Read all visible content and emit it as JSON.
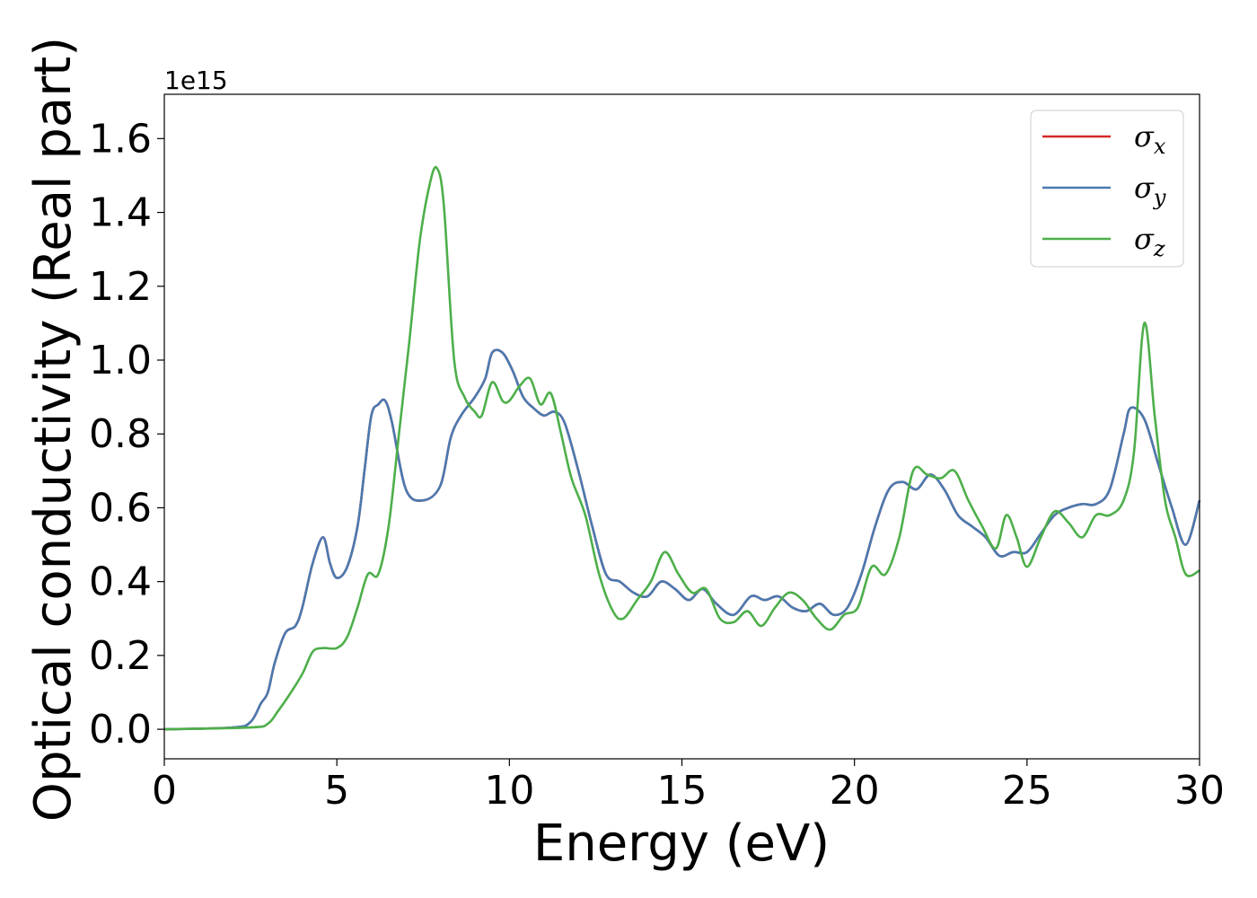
{
  "chart_data": {
    "type": "line",
    "xlabel": "Energy (eV)",
    "ylabel": "Optical conductivity (Real part)",
    "y_offset_label": "1e15",
    "xlim": [
      0,
      30
    ],
    "ylim": [
      -0.08,
      1.72
    ],
    "xticks": [
      0,
      5,
      10,
      15,
      20,
      25,
      30
    ],
    "yticks": [
      0.0,
      0.2,
      0.4,
      0.6,
      0.8,
      1.0,
      1.2,
      1.4,
      1.6
    ],
    "xtick_labels": [
      "0",
      "5",
      "10",
      "15",
      "20",
      "25",
      "30"
    ],
    "ytick_labels": [
      "0.0",
      "0.2",
      "0.4",
      "0.6",
      "0.8",
      "1.0",
      "1.2",
      "1.4",
      "1.6"
    ],
    "grid": false,
    "legend_position": "top-right",
    "series": [
      {
        "name": "σx",
        "legend_base": "σ",
        "legend_sub": "x",
        "color": "#d62728",
        "x": [
          0,
          2.0,
          2.5,
          2.8,
          3.0,
          3.2,
          3.5,
          3.8,
          4.0,
          4.3,
          4.6,
          4.8,
          5.0,
          5.3,
          5.6,
          5.8,
          6.0,
          6.2,
          6.4,
          6.6,
          7.0,
          7.5,
          8.0,
          8.3,
          8.6,
          9.0,
          9.3,
          9.5,
          9.8,
          10.1,
          10.4,
          10.7,
          11.0,
          11.3,
          11.6,
          12.0,
          12.4,
          12.8,
          13.2,
          13.6,
          14.0,
          14.4,
          14.8,
          15.2,
          15.6,
          16.0,
          16.5,
          17.0,
          17.4,
          17.8,
          18.2,
          18.6,
          19.0,
          19.4,
          19.8,
          20.2,
          20.6,
          21.0,
          21.4,
          21.8,
          22.2,
          22.6,
          23.0,
          23.4,
          23.8,
          24.2,
          24.6,
          25.0,
          25.4,
          25.8,
          26.2,
          26.6,
          27.0,
          27.4,
          27.8,
          28.0,
          28.4,
          28.8,
          29.2,
          29.6,
          30.0
        ],
        "values": [
          0.0,
          0.005,
          0.02,
          0.07,
          0.1,
          0.18,
          0.26,
          0.28,
          0.33,
          0.45,
          0.52,
          0.45,
          0.41,
          0.44,
          0.55,
          0.7,
          0.85,
          0.88,
          0.89,
          0.83,
          0.65,
          0.62,
          0.66,
          0.79,
          0.85,
          0.9,
          0.95,
          1.02,
          1.02,
          0.97,
          0.9,
          0.87,
          0.85,
          0.86,
          0.83,
          0.7,
          0.55,
          0.42,
          0.4,
          0.37,
          0.36,
          0.4,
          0.38,
          0.35,
          0.38,
          0.34,
          0.31,
          0.36,
          0.35,
          0.36,
          0.33,
          0.32,
          0.34,
          0.31,
          0.33,
          0.42,
          0.55,
          0.65,
          0.67,
          0.65,
          0.69,
          0.65,
          0.58,
          0.55,
          0.52,
          0.47,
          0.48,
          0.48,
          0.53,
          0.58,
          0.6,
          0.61,
          0.61,
          0.65,
          0.8,
          0.87,
          0.84,
          0.72,
          0.6,
          0.5,
          0.62
        ]
      },
      {
        "name": "σy",
        "legend_base": "σ",
        "legend_sub": "y",
        "color": "#4a7ab0",
        "x": [
          0,
          2.0,
          2.5,
          2.8,
          3.0,
          3.2,
          3.5,
          3.8,
          4.0,
          4.3,
          4.6,
          4.8,
          5.0,
          5.3,
          5.6,
          5.8,
          6.0,
          6.2,
          6.4,
          6.6,
          7.0,
          7.5,
          8.0,
          8.3,
          8.6,
          9.0,
          9.3,
          9.5,
          9.8,
          10.1,
          10.4,
          10.7,
          11.0,
          11.3,
          11.6,
          12.0,
          12.4,
          12.8,
          13.2,
          13.6,
          14.0,
          14.4,
          14.8,
          15.2,
          15.6,
          16.0,
          16.5,
          17.0,
          17.4,
          17.8,
          18.2,
          18.6,
          19.0,
          19.4,
          19.8,
          20.2,
          20.6,
          21.0,
          21.4,
          21.8,
          22.2,
          22.6,
          23.0,
          23.4,
          23.8,
          24.2,
          24.6,
          25.0,
          25.4,
          25.8,
          26.2,
          26.6,
          27.0,
          27.4,
          27.8,
          28.0,
          28.4,
          28.8,
          29.2,
          29.6,
          30.0
        ],
        "values": [
          0.0,
          0.005,
          0.02,
          0.07,
          0.1,
          0.18,
          0.26,
          0.28,
          0.33,
          0.45,
          0.52,
          0.45,
          0.41,
          0.44,
          0.55,
          0.7,
          0.85,
          0.88,
          0.89,
          0.83,
          0.65,
          0.62,
          0.66,
          0.79,
          0.85,
          0.9,
          0.95,
          1.02,
          1.02,
          0.97,
          0.9,
          0.87,
          0.85,
          0.86,
          0.83,
          0.7,
          0.55,
          0.42,
          0.4,
          0.37,
          0.36,
          0.4,
          0.38,
          0.35,
          0.38,
          0.34,
          0.31,
          0.36,
          0.35,
          0.36,
          0.33,
          0.32,
          0.34,
          0.31,
          0.33,
          0.42,
          0.55,
          0.65,
          0.67,
          0.65,
          0.69,
          0.65,
          0.58,
          0.55,
          0.52,
          0.47,
          0.48,
          0.48,
          0.53,
          0.58,
          0.6,
          0.61,
          0.61,
          0.65,
          0.8,
          0.87,
          0.84,
          0.72,
          0.6,
          0.5,
          0.62
        ]
      },
      {
        "name": "σz",
        "legend_base": "σ",
        "legend_sub": "z",
        "color": "#4daf4a",
        "x": [
          0,
          2.5,
          3.0,
          3.3,
          3.6,
          4.0,
          4.3,
          4.6,
          5.0,
          5.3,
          5.6,
          5.9,
          6.2,
          6.5,
          6.8,
          7.1,
          7.4,
          7.7,
          7.9,
          8.1,
          8.4,
          8.7,
          9.0,
          9.2,
          9.5,
          9.8,
          10.0,
          10.3,
          10.6,
          10.9,
          11.2,
          11.5,
          11.8,
          12.2,
          12.6,
          13.0,
          13.3,
          13.7,
          14.1,
          14.5,
          14.9,
          15.3,
          15.7,
          16.1,
          16.5,
          16.9,
          17.3,
          17.7,
          18.1,
          18.5,
          18.9,
          19.3,
          19.7,
          20.1,
          20.5,
          20.9,
          21.3,
          21.7,
          22.1,
          22.5,
          22.9,
          23.3,
          23.7,
          24.1,
          24.4,
          24.7,
          25.0,
          25.4,
          25.8,
          26.2,
          26.6,
          27.0,
          27.4,
          27.8,
          28.1,
          28.4,
          28.7,
          29.0,
          29.3,
          29.6,
          30.0
        ],
        "values": [
          0.0,
          0.005,
          0.015,
          0.05,
          0.09,
          0.15,
          0.21,
          0.22,
          0.22,
          0.25,
          0.33,
          0.42,
          0.42,
          0.55,
          0.8,
          1.05,
          1.32,
          1.48,
          1.52,
          1.42,
          1.0,
          0.9,
          0.86,
          0.85,
          0.94,
          0.89,
          0.89,
          0.93,
          0.95,
          0.88,
          0.91,
          0.8,
          0.68,
          0.58,
          0.42,
          0.32,
          0.3,
          0.35,
          0.4,
          0.48,
          0.42,
          0.37,
          0.38,
          0.3,
          0.29,
          0.32,
          0.28,
          0.33,
          0.37,
          0.35,
          0.3,
          0.27,
          0.31,
          0.33,
          0.44,
          0.42,
          0.52,
          0.7,
          0.69,
          0.68,
          0.7,
          0.62,
          0.55,
          0.49,
          0.58,
          0.52,
          0.44,
          0.52,
          0.59,
          0.56,
          0.52,
          0.58,
          0.58,
          0.62,
          0.75,
          1.1,
          0.85,
          0.62,
          0.52,
          0.42,
          0.43
        ]
      }
    ]
  }
}
